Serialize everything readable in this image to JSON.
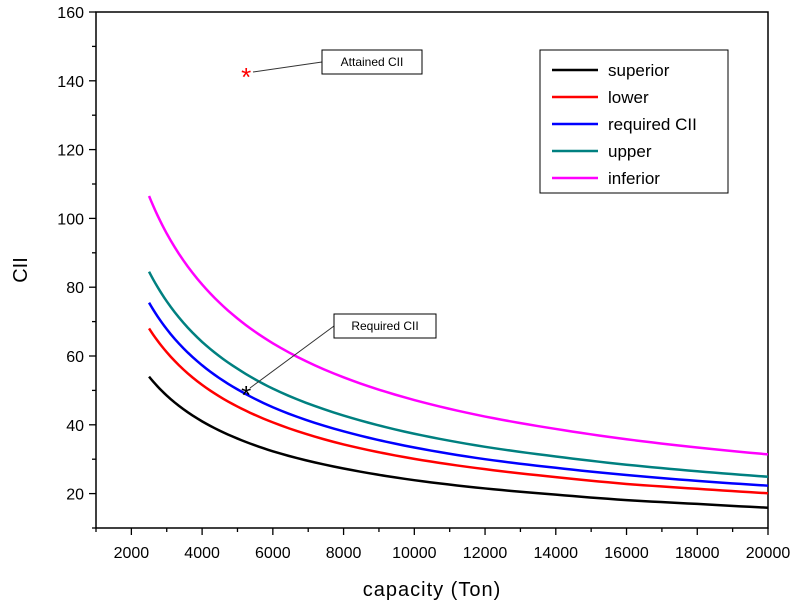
{
  "chart_data": {
    "type": "line",
    "title": "",
    "xlabel": "capacity (Ton)",
    "ylabel": "CII",
    "xlim": [
      1000,
      20000
    ],
    "ylim": [
      10,
      160
    ],
    "xticks": [
      2000,
      4000,
      6000,
      8000,
      10000,
      12000,
      14000,
      16000,
      18000,
      20000
    ],
    "yticks": [
      20,
      40,
      60,
      80,
      100,
      120,
      140,
      160
    ],
    "grid": false,
    "legend_position": "top-right",
    "x": [
      2500,
      3000,
      4000,
      5000,
      6000,
      8000,
      10000,
      12000,
      14000,
      16000,
      18000,
      20000
    ],
    "series": [
      {
        "name": "superior",
        "color": "#000000",
        "values": [
          54,
          48.5,
          41.0,
          36.0,
          32.3,
          27.3,
          23.9,
          21.5,
          19.7,
          18.1,
          17.0,
          15.9
        ]
      },
      {
        "name": "lower",
        "color": "#ff0000",
        "values": [
          68,
          61.1,
          51.6,
          45.3,
          40.7,
          34.3,
          30.1,
          27.1,
          24.8,
          22.8,
          21.4,
          20.1
        ]
      },
      {
        "name": "required CII",
        "color": "#0000ff",
        "values": [
          75.5,
          67.8,
          57.3,
          50.3,
          45.1,
          38.1,
          33.4,
          30.0,
          27.5,
          25.4,
          23.7,
          22.3
        ]
      },
      {
        "name": "upper",
        "color": "#008080",
        "values": [
          84.5,
          75.9,
          64.1,
          56.3,
          50.5,
          42.7,
          37.4,
          33.6,
          30.8,
          28.4,
          26.5,
          24.9
        ]
      },
      {
        "name": "inferior",
        "color": "#ff00ff",
        "values": [
          106.5,
          95.6,
          80.8,
          70.9,
          63.7,
          53.8,
          47.2,
          42.4,
          38.8,
          35.8,
          33.4,
          31.4
        ]
      }
    ],
    "points": [
      {
        "label": "Attained CII",
        "x": 5247,
        "y": 142,
        "color": "#ff0000"
      },
      {
        "label": "Required CII",
        "x": 5247,
        "y": 49.5,
        "color": "#000000"
      }
    ]
  }
}
